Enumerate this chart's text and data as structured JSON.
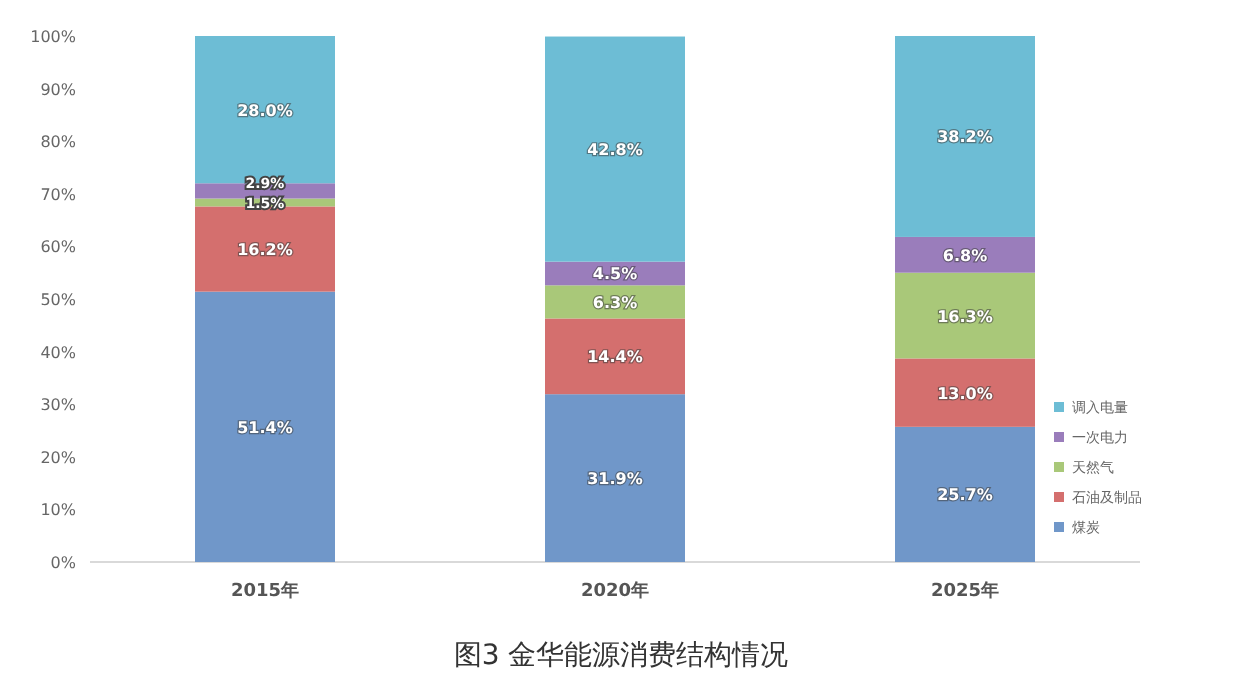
{
  "chart_data": {
    "type": "bar",
    "stacked": true,
    "title": "图3  金华能源消费结构情况",
    "categories": [
      "2015年",
      "2020年",
      "2025年"
    ],
    "series": [
      {
        "name": "煤炭",
        "color": "#7097c9",
        "values": [
          51.4,
          31.9,
          25.7
        ],
        "value_labels": [
          "51.4%",
          "31.9%",
          "25.7%"
        ]
      },
      {
        "name": "石油及制品",
        "color": "#d46f6e",
        "values": [
          16.2,
          14.4,
          13.0
        ],
        "value_labels": [
          "16.2%",
          "14.4%",
          "13.0%"
        ]
      },
      {
        "name": "天然气",
        "color": "#a9c879",
        "values": [
          1.5,
          6.3,
          16.3
        ],
        "value_labels": [
          "1.5%",
          "6.3%",
          "16.3%"
        ]
      },
      {
        "name": "一次电力",
        "color": "#9a7dbb",
        "values": [
          2.9,
          4.5,
          6.8
        ],
        "value_labels": [
          "2.9%",
          "4.5%",
          "6.8%"
        ]
      },
      {
        "name": "调入电量",
        "color": "#6dbdd5",
        "values": [
          28.0,
          42.8,
          38.2
        ],
        "value_labels": [
          "28.0%",
          "42.8%",
          "38.2%"
        ]
      }
    ],
    "ylim": [
      0,
      100
    ],
    "yticks": [
      {
        "value": 0,
        "label": "0%"
      },
      {
        "value": 10,
        "label": "10%"
      },
      {
        "value": 20,
        "label": "20%"
      },
      {
        "value": 30,
        "label": "30%"
      },
      {
        "value": 40,
        "label": "40%"
      },
      {
        "value": 50,
        "label": "50%"
      },
      {
        "value": 60,
        "label": "60%"
      },
      {
        "value": 70,
        "label": "70%"
      },
      {
        "value": 80,
        "label": "80%"
      },
      {
        "value": 90,
        "label": "90%"
      },
      {
        "value": 100,
        "label": "100%"
      }
    ],
    "grid": false,
    "legend": "right"
  }
}
